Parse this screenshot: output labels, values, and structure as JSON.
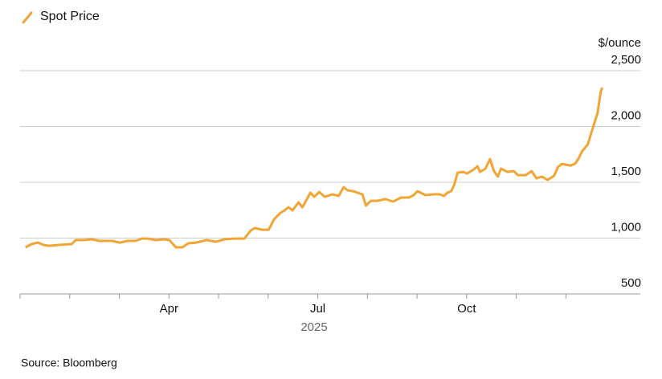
{
  "chart_data": {
    "type": "line",
    "legend_position": "top-left",
    "y_unit": "$/ounce",
    "x_label": "2025",
    "source": "Source: Bloomberg",
    "xlim": [
      1,
      13.5
    ],
    "xticks": [
      {
        "value": 1,
        "label": null
      },
      {
        "value": 2,
        "label": null
      },
      {
        "value": 3,
        "label": null
      },
      {
        "value": 4,
        "label": "Apr"
      },
      {
        "value": 5,
        "label": null
      },
      {
        "value": 6,
        "label": null
      },
      {
        "value": 7,
        "label": "Jul"
      },
      {
        "value": 8,
        "label": null
      },
      {
        "value": 9,
        "label": null
      },
      {
        "value": 10,
        "label": "Oct"
      },
      {
        "value": 11,
        "label": null
      },
      {
        "value": 12,
        "label": null
      }
    ],
    "ylim": [
      500,
      2500
    ],
    "yticks": [
      500,
      {
        "value": 1000,
        "label": "1,000"
      },
      {
        "value": 1500,
        "label": "1,500"
      },
      {
        "value": 2000,
        "label": "2,000"
      },
      {
        "value": 2500,
        "label": "2,500"
      }
    ],
    "grid": true,
    "x": [
      1.11,
      1.23,
      1.36,
      1.47,
      1.58,
      1.79,
      2.04,
      2.12,
      2.28,
      2.44,
      2.6,
      2.85,
      3.01,
      3.17,
      3.33,
      3.46,
      3.58,
      3.74,
      3.9,
      4.01,
      4.14,
      4.27,
      4.39,
      4.55,
      4.76,
      4.95,
      5.12,
      5.31,
      5.52,
      5.65,
      5.73,
      5.89,
      6.01,
      6.12,
      6.25,
      6.33,
      6.41,
      6.49,
      6.61,
      6.69,
      6.79,
      6.85,
      6.93,
      7.03,
      7.14,
      7.3,
      7.42,
      7.52,
      7.6,
      7.71,
      7.9,
      7.97,
      8.07,
      8.2,
      8.36,
      8.52,
      8.68,
      8.84,
      8.93,
      9.01,
      9.17,
      9.33,
      9.46,
      9.54,
      9.61,
      9.69,
      9.75,
      9.82,
      9.93,
      10.01,
      10.14,
      10.22,
      10.27,
      10.38,
      10.47,
      10.55,
      10.63,
      10.69,
      10.82,
      10.95,
      11.03,
      11.19,
      11.31,
      11.41,
      11.52,
      11.63,
      11.76,
      11.84,
      11.92,
      12.09,
      12.18,
      12.25,
      12.33,
      12.44,
      12.54,
      12.64,
      12.7,
      12.73
    ],
    "series": [
      {
        "name": "Spot Price",
        "color": "#f0a535",
        "values": [
          917,
          946,
          960,
          939,
          931,
          939,
          946,
          982,
          982,
          989,
          975,
          975,
          960,
          975,
          975,
          996,
          996,
          982,
          989,
          982,
          917,
          917,
          953,
          960,
          982,
          967,
          989,
          996,
          996,
          1068,
          1090,
          1075,
          1075,
          1169,
          1226,
          1248,
          1277,
          1248,
          1320,
          1277,
          1356,
          1406,
          1370,
          1413,
          1370,
          1392,
          1377,
          1456,
          1428,
          1420,
          1392,
          1291,
          1334,
          1334,
          1349,
          1327,
          1363,
          1363,
          1385,
          1420,
          1385,
          1392,
          1392,
          1377,
          1406,
          1420,
          1478,
          1586,
          1593,
          1579,
          1614,
          1643,
          1593,
          1622,
          1708,
          1600,
          1550,
          1622,
          1593,
          1600,
          1564,
          1564,
          1600,
          1535,
          1550,
          1521,
          1557,
          1636,
          1665,
          1650,
          1665,
          1708,
          1780,
          1837,
          1981,
          2125,
          2305,
          2348
        ]
      }
    ]
  }
}
